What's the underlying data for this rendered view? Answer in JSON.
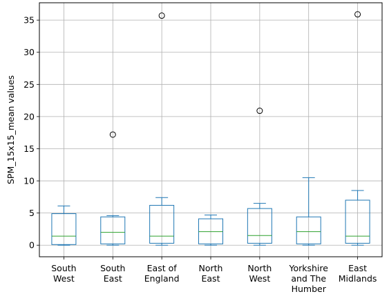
{
  "chart_data": {
    "type": "box",
    "ylabel": "SPM_15x15_mean values",
    "ylim": [
      -1.8,
      37.7
    ],
    "yticks": [
      0,
      5,
      10,
      15,
      20,
      25,
      30,
      35
    ],
    "grid": true,
    "colors": {
      "box": "#1f77b4",
      "median": "#2ca02c",
      "grid": "#b0b0b0",
      "axis": "#000000",
      "flier": "#000000"
    },
    "categories": [
      {
        "label_lines": [
          "South",
          "West"
        ],
        "whislo": 0.0,
        "q1": 0.1,
        "med": 1.4,
        "q3": 4.9,
        "whishi": 6.1,
        "fliers": []
      },
      {
        "label_lines": [
          "South",
          "East"
        ],
        "whislo": 0.0,
        "q1": 0.2,
        "med": 2.0,
        "q3": 4.4,
        "whishi": 4.6,
        "fliers": [
          17.2
        ]
      },
      {
        "label_lines": [
          "East of",
          "England"
        ],
        "whislo": 0.0,
        "q1": 0.3,
        "med": 1.4,
        "q3": 6.2,
        "whishi": 7.4,
        "fliers": [
          35.7
        ]
      },
      {
        "label_lines": [
          "North",
          "East"
        ],
        "whislo": 0.0,
        "q1": 0.2,
        "med": 2.1,
        "q3": 4.1,
        "whishi": 4.7,
        "fliers": []
      },
      {
        "label_lines": [
          "North",
          "West"
        ],
        "whislo": 0.0,
        "q1": 0.3,
        "med": 1.5,
        "q3": 5.7,
        "whishi": 6.5,
        "fliers": [
          20.9
        ]
      },
      {
        "label_lines": [
          "Yorkshire",
          "and The",
          "Humber"
        ],
        "whislo": 0.0,
        "q1": 0.2,
        "med": 2.1,
        "q3": 4.4,
        "whishi": 10.5,
        "fliers": []
      },
      {
        "label_lines": [
          "East",
          "Midlands"
        ],
        "whislo": 0.0,
        "q1": 0.3,
        "med": 1.4,
        "q3": 7.0,
        "whishi": 8.5,
        "fliers": [
          35.9
        ]
      }
    ]
  }
}
